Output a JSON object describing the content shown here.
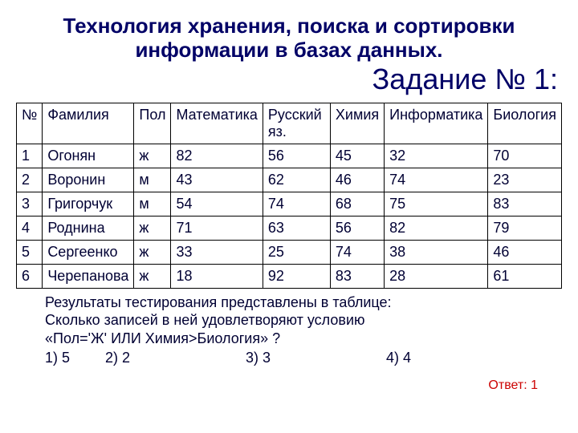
{
  "title": "Технология хранения, поиска и сортировки информации в базах данных.",
  "task": "Задание № 1:",
  "headers": {
    "n": "№",
    "surname": "Фамилия",
    "gender": "Пол",
    "math": "Математика",
    "russian": "Русский яз.",
    "chem": "Химия",
    "inf": "Информатика",
    "bio": "Биология"
  },
  "rows": [
    {
      "n": "1",
      "surname": "Огонян",
      "gender": "ж",
      "math": "82",
      "russian": "56",
      "chem": "45",
      "inf": "32",
      "bio": "70"
    },
    {
      "n": "2",
      "surname": "Воронин",
      "gender": "м",
      "math": "43",
      "russian": "62",
      "chem": "46",
      "inf": "74",
      "bio": "23"
    },
    {
      "n": "3",
      "surname": "Григорчук",
      "gender": "м",
      "math": "54",
      "russian": "74",
      "chem": "68",
      "inf": "75",
      "bio": "83"
    },
    {
      "n": "4",
      "surname": "Роднина",
      "gender": "ж",
      "math": "71",
      "russian": "63",
      "chem": "56",
      "inf": "82",
      "bio": "79"
    },
    {
      "n": "5",
      "surname": "Сергеенко",
      "gender": "ж",
      "math": "33",
      "russian": "25",
      "chem": "74",
      "inf": "38",
      "bio": "46"
    },
    {
      "n": "6",
      "surname": "Черепанова",
      "gender": "ж",
      "math": "18",
      "russian": "92",
      "chem": "83",
      "inf": "28",
      "bio": "61"
    }
  ],
  "question": {
    "line1": "Результаты тестирования представлены в таблице:",
    "line2": "Сколько записей в ней удовлетворяют условию",
    "line3": "«Пол='Ж' ИЛИ Химия>Биология» ?",
    "opt1": "1) 5",
    "opt2": "2) 2",
    "opt3": "3) 3",
    "opt4": "4) 4"
  },
  "answer": "Ответ: 1",
  "colors": {
    "text": "#000066",
    "answer": "#cc0000",
    "border": "#000000",
    "bg": "#ffffff"
  }
}
